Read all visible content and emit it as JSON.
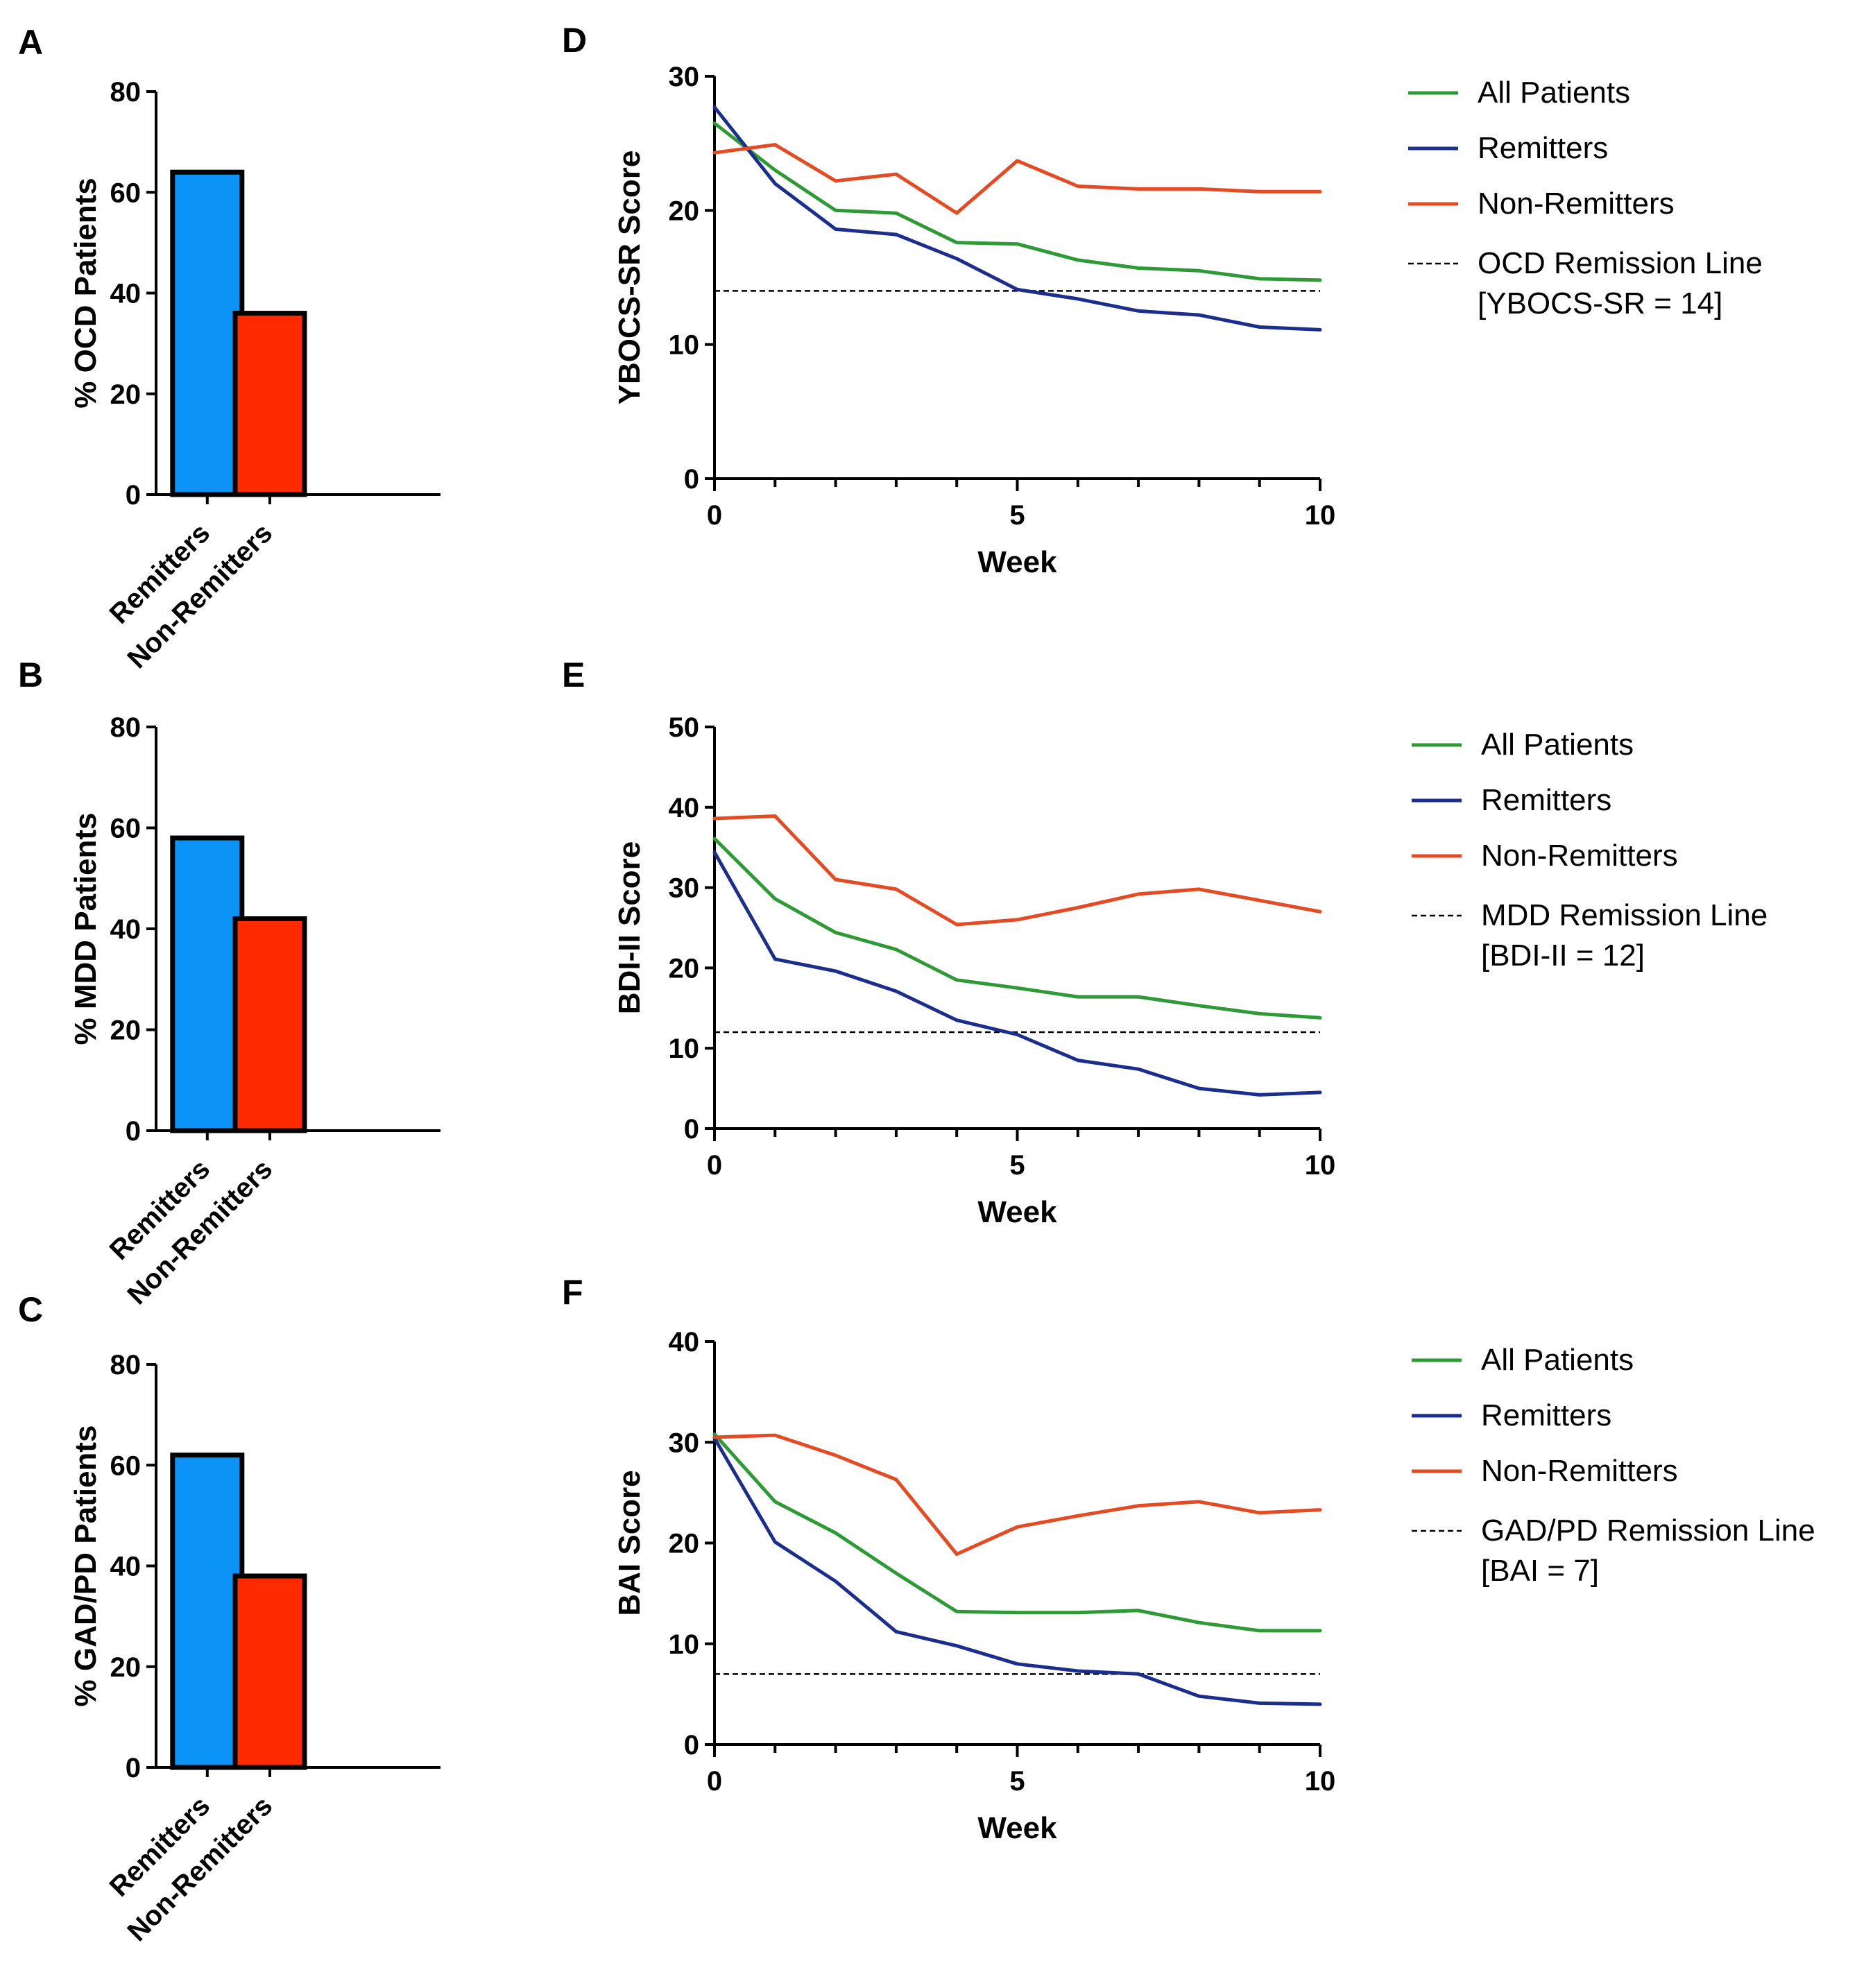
{
  "colors": {
    "remitters_bar": "#0b93f5",
    "non_remitters_bar": "#ff2a00",
    "all_patients": "#2e9a35",
    "remitters_line": "#1b2e8e",
    "non_remitters_line": "#e64a22",
    "remission_line": "#000000"
  },
  "chart_data": [
    {
      "panel": "A",
      "type": "bar",
      "categories": [
        "Remitters",
        "Non-Remitters"
      ],
      "values": [
        64,
        36
      ],
      "ylabel": "% OCD Patients",
      "ylim": [
        0,
        80
      ],
      "yticks": [
        0,
        20,
        40,
        60,
        80
      ]
    },
    {
      "panel": "B",
      "type": "bar",
      "categories": [
        "Remitters",
        "Non-Remitters"
      ],
      "values": [
        58,
        42
      ],
      "ylabel": "% MDD Patients",
      "ylim": [
        0,
        80
      ],
      "yticks": [
        0,
        20,
        40,
        60,
        80
      ]
    },
    {
      "panel": "C",
      "type": "bar",
      "categories": [
        "Remitters",
        "Non-Remitters"
      ],
      "values": [
        62,
        38
      ],
      "ylabel": "% GAD/PD Patients",
      "ylim": [
        0,
        80
      ],
      "yticks": [
        0,
        20,
        40,
        60,
        80
      ]
    },
    {
      "panel": "D",
      "type": "line",
      "x": [
        0,
        1,
        2,
        3,
        4,
        5,
        6,
        7,
        8,
        9,
        10
      ],
      "series": [
        {
          "name": "All Patients",
          "values": [
            26.5,
            23.0,
            20.0,
            19.8,
            17.6,
            17.5,
            16.3,
            15.7,
            15.5,
            14.9,
            14.8
          ]
        },
        {
          "name": "Remitters",
          "values": [
            27.7,
            22.0,
            18.6,
            18.2,
            16.4,
            14.1,
            13.4,
            12.5,
            12.2,
            11.3,
            11.1
          ]
        },
        {
          "name": "Non-Remitters",
          "values": [
            24.3,
            24.9,
            22.2,
            22.7,
            19.8,
            23.7,
            21.8,
            21.6,
            21.6,
            21.4,
            21.4
          ]
        }
      ],
      "remission_line": {
        "value": 14,
        "label": "OCD Remission Line",
        "sublabel": "[YBOCS-SR = 14]"
      },
      "xlabel": "Week",
      "ylabel": "YBOCS-SR Score",
      "xlim": [
        0,
        10
      ],
      "ylim": [
        0,
        30
      ],
      "xticks": [
        0,
        5,
        10
      ],
      "yticks": [
        0,
        10,
        20,
        30
      ]
    },
    {
      "panel": "E",
      "type": "line",
      "x": [
        0,
        1,
        2,
        3,
        4,
        5,
        6,
        7,
        8,
        9,
        10
      ],
      "series": [
        {
          "name": "All Patients",
          "values": [
            36.1,
            28.6,
            24.4,
            22.3,
            18.5,
            17.5,
            16.4,
            16.4,
            15.3,
            14.3,
            13.8
          ]
        },
        {
          "name": "Remitters",
          "values": [
            34.4,
            21.1,
            19.6,
            17.1,
            13.5,
            11.7,
            8.5,
            7.4,
            5.0,
            4.2,
            4.5
          ]
        },
        {
          "name": "Non-Remitters",
          "values": [
            38.6,
            38.9,
            31.0,
            29.8,
            25.4,
            26.0,
            27.5,
            29.2,
            29.8,
            28.4,
            27.0
          ]
        }
      ],
      "remission_line": {
        "value": 12,
        "label": "MDD Remission Line",
        "sublabel": "[BDI-II = 12]"
      },
      "xlabel": "Week",
      "ylabel": "BDI-II Score",
      "xlim": [
        0,
        10
      ],
      "ylim": [
        0,
        50
      ],
      "xticks": [
        0,
        5,
        10
      ],
      "yticks": [
        0,
        10,
        20,
        30,
        40,
        50
      ]
    },
    {
      "panel": "F",
      "type": "line",
      "x": [
        0,
        1,
        2,
        3,
        4,
        5,
        6,
        7,
        8,
        9,
        10
      ],
      "series": [
        {
          "name": "All Patients",
          "values": [
            30.8,
            24.1,
            21.0,
            17.0,
            13.2,
            13.1,
            13.1,
            13.3,
            12.1,
            11.3,
            11.3
          ]
        },
        {
          "name": "Remitters",
          "values": [
            30.4,
            20.1,
            16.2,
            11.2,
            9.8,
            8.0,
            7.3,
            7.0,
            4.8,
            4.1,
            4.0
          ]
        },
        {
          "name": "Non-Remitters",
          "values": [
            30.5,
            30.7,
            28.7,
            26.3,
            18.9,
            21.6,
            22.7,
            23.7,
            24.1,
            23.0,
            23.3
          ]
        }
      ],
      "remission_line": {
        "value": 7,
        "label": "GAD/PD Remission Line",
        "sublabel": "[BAI = 7]"
      },
      "xlabel": "Week",
      "ylabel": "BAI Score",
      "xlim": [
        0,
        10
      ],
      "ylim": [
        0,
        40
      ],
      "xticks": [
        0,
        5,
        10
      ],
      "yticks": [
        0,
        10,
        20,
        30,
        40
      ]
    }
  ]
}
